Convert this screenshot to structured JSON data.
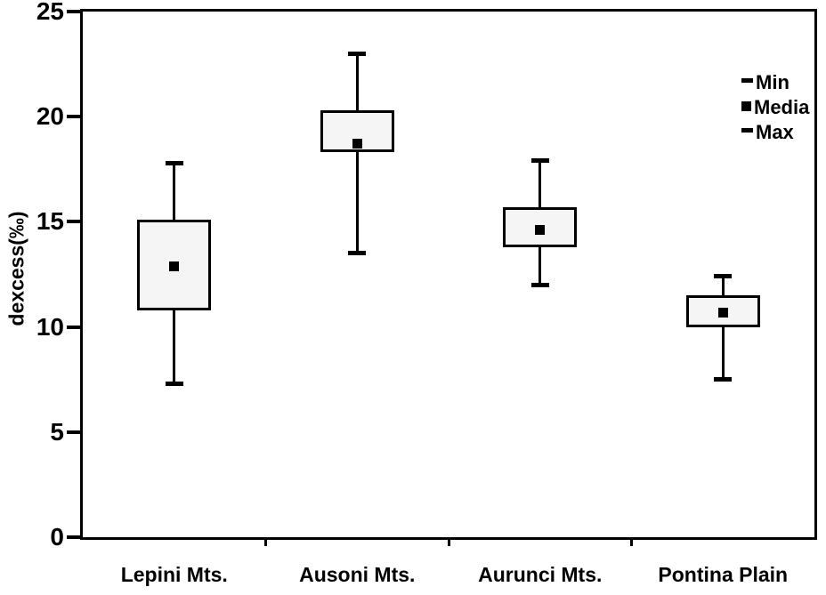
{
  "chart_data": {
    "type": "boxplot",
    "title": "",
    "xlabel": "",
    "ylabel": "dexcess(‰)",
    "ylim": [
      0,
      25
    ],
    "yticks": [
      0,
      5,
      10,
      15,
      20,
      25
    ],
    "grid": false,
    "categories": [
      "Lepini Mts.",
      "Ausoni Mts.",
      "Aurunci Mts.",
      "Pontina Plain"
    ],
    "series": [
      {
        "category": "Lepini Mts.",
        "min": 7.3,
        "box_low": 10.8,
        "media": 12.9,
        "box_high": 15.1,
        "max": 17.8
      },
      {
        "category": "Ausoni Mts.",
        "min": 13.5,
        "box_low": 18.3,
        "media": 18.7,
        "box_high": 20.3,
        "max": 23.0
      },
      {
        "category": "Aurunci Mts.",
        "min": 12.0,
        "box_low": 13.8,
        "media": 14.6,
        "box_high": 15.7,
        "max": 17.9
      },
      {
        "category": "Pontina Plain",
        "min": 7.5,
        "box_low": 10.0,
        "media": 10.7,
        "box_high": 11.5,
        "max": 12.4
      }
    ],
    "legend": {
      "position": "top-right",
      "items": [
        {
          "marker": "dash",
          "label": "Min"
        },
        {
          "marker": "square",
          "label": "Media"
        },
        {
          "marker": "dash",
          "label": "Max"
        }
      ]
    }
  },
  "colors": {
    "line": "#000000",
    "box_fill": "#f5f5f5",
    "background": "#ffffff"
  }
}
